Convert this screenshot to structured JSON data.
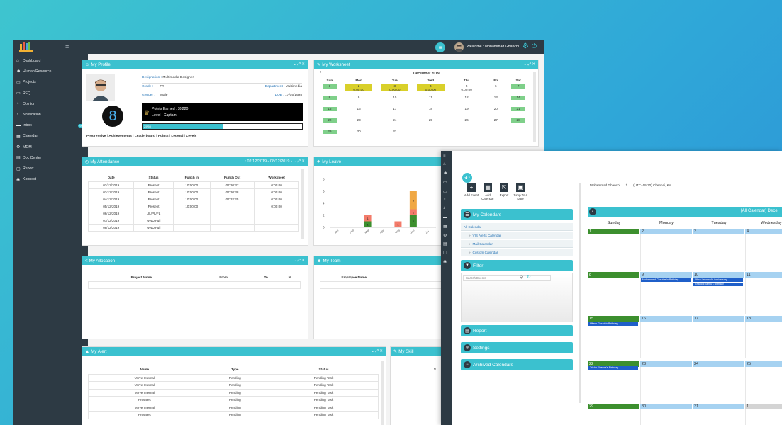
{
  "dashboard": {
    "welcome": "Welcome : Mohammad Ghanchi",
    "sidebar": [
      {
        "icon": "home-icon",
        "label": "Dashboard"
      },
      {
        "icon": "users-icon",
        "label": "Human Resource"
      },
      {
        "icon": "folder-icon",
        "label": "Projects"
      },
      {
        "icon": "folder-open-icon",
        "label": "RFQ"
      },
      {
        "icon": "lightbulb-icon",
        "label": "Opinion"
      },
      {
        "icon": "bell-icon",
        "label": "Notification"
      },
      {
        "icon": "inbox-icon",
        "label": "Inbox",
        "badge": "99+"
      },
      {
        "icon": "calendar-icon",
        "label": "Calendar"
      },
      {
        "icon": "gear-icon",
        "label": "MOM"
      },
      {
        "icon": "document-icon",
        "label": "Doc Center"
      },
      {
        "icon": "report-icon",
        "label": "Report"
      },
      {
        "icon": "eye-icon",
        "label": "Konnect"
      }
    ],
    "profile": {
      "title": "My Profile",
      "designation_label": "Designation :",
      "designation": "Multimedia Designer",
      "grade_label": "Grade :",
      "grade": "FR",
      "department_label": "Department :",
      "department": "Multimedia",
      "gender_label": "Gender :",
      "gender": "Male",
      "dob_label": "DOB :",
      "dob": "17/05/1998",
      "level_number": "8",
      "points": "Points Earned : 39220",
      "level": "Level : Captain",
      "progress_label": "25/50",
      "progress_fraction": 0.5,
      "links": [
        "Progressive",
        "Achievements",
        "Leaderboard",
        "Points",
        "Legend",
        "Levels"
      ]
    },
    "worksheet": {
      "title": "My Worksheet",
      "month": "December 2019",
      "days": [
        "Sun",
        "Mon",
        "Tue",
        "Wed",
        "Thu",
        "Fri",
        "Sat"
      ],
      "rows": [
        [
          {
            "t": "1",
            "c": "g"
          },
          {
            "t": "2\n0:00:00",
            "c": "y"
          },
          {
            "t": "3\n0:00:00",
            "c": "y"
          },
          {
            "t": "4\n0:00:00",
            "c": "y"
          },
          {
            "t": "5\n0:00:00",
            "c": ""
          },
          {
            "t": "6",
            "c": ""
          },
          {
            "t": "7",
            "c": "g"
          }
        ],
        [
          {
            "t": "8",
            "c": "g"
          },
          {
            "t": "9",
            "c": ""
          },
          {
            "t": "10",
            "c": ""
          },
          {
            "t": "11",
            "c": ""
          },
          {
            "t": "12",
            "c": ""
          },
          {
            "t": "13",
            "c": ""
          },
          {
            "t": "14",
            "c": "g"
          }
        ],
        [
          {
            "t": "15",
            "c": "g"
          },
          {
            "t": "16",
            "c": ""
          },
          {
            "t": "17",
            "c": ""
          },
          {
            "t": "18",
            "c": ""
          },
          {
            "t": "19",
            "c": ""
          },
          {
            "t": "20",
            "c": ""
          },
          {
            "t": "21",
            "c": "g"
          }
        ],
        [
          {
            "t": "22",
            "c": "g"
          },
          {
            "t": "23",
            "c": ""
          },
          {
            "t": "24",
            "c": ""
          },
          {
            "t": "25",
            "c": ""
          },
          {
            "t": "26",
            "c": ""
          },
          {
            "t": "27",
            "c": ""
          },
          {
            "t": "28",
            "c": "g"
          }
        ],
        [
          {
            "t": "29",
            "c": "g"
          },
          {
            "t": "30",
            "c": ""
          },
          {
            "t": "31",
            "c": ""
          },
          {
            "t": "",
            "c": ""
          },
          {
            "t": "",
            "c": ""
          },
          {
            "t": "",
            "c": ""
          },
          {
            "t": "",
            "c": ""
          }
        ]
      ]
    },
    "attendance": {
      "title": "My Attendance",
      "range": "02/12/2019 - 08/12/2019",
      "columns": [
        "Date",
        "Status",
        "Punch In",
        "Punch Out",
        "Worksheet"
      ],
      "rows": [
        [
          "02/12/2019",
          "Present",
          "10:00:00",
          "07:30:37",
          "0:00:00"
        ],
        [
          "03/12/2019",
          "Present",
          "10:00:00",
          "07:30:38",
          "0:00:00"
        ],
        [
          "04/12/2019",
          "Present",
          "10:00:00",
          "07:32:25",
          "0:00:00"
        ],
        [
          "05/12/2019",
          "Present",
          "10:00:00",
          "",
          "0:00:00"
        ],
        [
          "06/12/2019",
          "UL/PL/FL",
          "",
          "",
          ""
        ],
        [
          "07/12/2019",
          "NWD/Full",
          "",
          "",
          ""
        ],
        [
          "08/12/2019",
          "NWD/Full",
          "",
          "",
          ""
        ]
      ]
    },
    "leave": {
      "title": "My Leave",
      "chart_data": {
        "type": "bar",
        "categories": [
          "Jan",
          "Feb",
          "Mar",
          "Apr",
          "May",
          "Jun",
          "Jul"
        ],
        "yticks": [
          0,
          2,
          4,
          6,
          8
        ],
        "ylim": [
          0,
          8
        ],
        "segments": [
          [],
          [],
          [
            {
              "v": 1,
              "c": "#3c8f2e"
            },
            {
              "v": 1,
              "c": "#f37b6a"
            }
          ],
          [],
          [
            {
              "v": 1,
              "c": "#f37b6a"
            }
          ],
          [
            {
              "v": 2,
              "c": "#3c8f2e"
            },
            {
              "v": 1,
              "c": "#f37b6a"
            },
            {
              "v": 3,
              "c": "#f0a844"
            }
          ],
          []
        ],
        "segment_labels": [
          [],
          [],
          [
            "1",
            "1"
          ],
          [],
          [
            "1"
          ],
          [
            "2",
            "1",
            "3"
          ],
          []
        ]
      }
    },
    "allocation": {
      "title": "My Allocation",
      "columns": [
        "Project Name",
        "From",
        "To",
        "%"
      ]
    },
    "team": {
      "title": "My Team",
      "columns": [
        "Employee Name"
      ]
    },
    "alert": {
      "title": "My Alert",
      "columns": [
        "Name",
        "Type",
        "Status"
      ],
      "rows": [
        [
          "Verve Internal",
          "Pending",
          "Pending Task"
        ],
        [
          "Verve Internal",
          "Pending",
          "Pending Task"
        ],
        [
          "Verve Internal",
          "Pending",
          "Pending Task"
        ],
        [
          "Presales",
          "Pending",
          "Pending Task"
        ],
        [
          "Verve Internal",
          "Pending",
          "Pending Task"
        ],
        [
          "Presales",
          "Pending",
          "Pending Task"
        ]
      ]
    },
    "skill": {
      "title": "My Skill",
      "col": "S"
    }
  },
  "calendar_app": {
    "user": "Mohammad Ghanchi",
    "timezone": "(UTC+05:30) Chennai, Ko",
    "toolbar": [
      {
        "icon": "plus-icon",
        "label": "Add Event"
      },
      {
        "icon": "calendar-add-icon",
        "label": "Add Calendar"
      },
      {
        "icon": "export-icon",
        "label": "Export"
      },
      {
        "icon": "calendar-jump-icon",
        "label": "Jump To A Date"
      }
    ],
    "my_calendars": "My Calendars",
    "calendar_links": [
      "All Calendar",
      "VIS Alerts Calendar",
      "Mail Calendar",
      "Custom Calendar"
    ],
    "filter": "Filter",
    "search_placeholder": "Search Events",
    "report": "Report",
    "settings": "Settings",
    "archived": "Archived Calendars",
    "cal_title": "[All Calendar] Dece",
    "weekdays": [
      "Sunday",
      "Monday",
      "Tuesday",
      "Wednesday"
    ],
    "weeks": [
      [
        "1",
        "2",
        "3",
        "4"
      ],
      [
        "8",
        "9",
        "10",
        "11"
      ],
      [
        "15",
        "16",
        "17",
        "18"
      ],
      [
        "22",
        "23",
        "24",
        "25"
      ],
      [
        "29",
        "30",
        "31",
        "1"
      ]
    ],
    "events": {
      "w1_mon": "Mohammed Chauhan's Birthday",
      "w1_tue_a": "Sthru Lafortani's Anniversary",
      "w1_tue_b": "Ghanchi Tannu's Birthday",
      "w2_sun": "Hitesh Gusain's Birthday",
      "w3_sun": "Trisha Khanna's Birthday"
    }
  }
}
